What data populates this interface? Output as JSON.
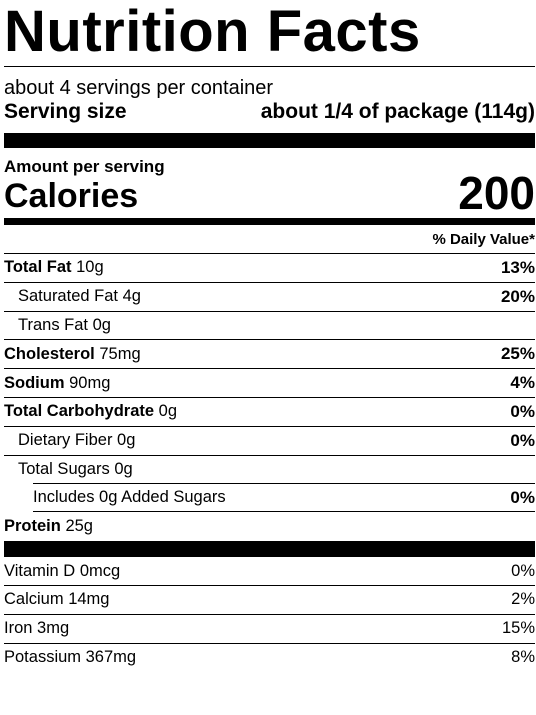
{
  "title": "Nutrition Facts",
  "servings_per_container": "about 4 servings per container",
  "serving_size_label": "Serving size",
  "serving_size_value": "about 1/4 of package (114g)",
  "amount_per_serving": "Amount per serving",
  "calories_label": "Calories",
  "calories_value": "200",
  "daily_value_header": "% Daily Value*",
  "nutrients": [
    {
      "name": "Total Fat",
      "amount": "10g",
      "dv": "13%"
    },
    {
      "name": "Saturated Fat",
      "amount": "4g",
      "dv": "20%"
    },
    {
      "name": "Trans Fat",
      "amount": "0g",
      "dv": ""
    },
    {
      "name": "Cholesterol",
      "amount": "75mg",
      "dv": "25%"
    },
    {
      "name": "Sodium",
      "amount": "90mg",
      "dv": "4%"
    },
    {
      "name": "Total Carbohydrate",
      "amount": "0g",
      "dv": "0%"
    },
    {
      "name": "Dietary Fiber",
      "amount": "0g",
      "dv": "0%"
    },
    {
      "name": "Total Sugars",
      "amount": "0g",
      "dv": ""
    },
    {
      "name": "Includes 0g Added Sugars",
      "amount": "",
      "dv": "0%"
    },
    {
      "name": "Protein",
      "amount": "25g",
      "dv": ""
    }
  ],
  "vitamins": [
    {
      "name": "Vitamin D",
      "amount": "0mcg",
      "dv": "0%"
    },
    {
      "name": "Calcium",
      "amount": "14mg",
      "dv": "2%"
    },
    {
      "name": "Iron",
      "amount": "3mg",
      "dv": "15%"
    },
    {
      "name": "Potassium",
      "amount": "367mg",
      "dv": "8%"
    }
  ]
}
